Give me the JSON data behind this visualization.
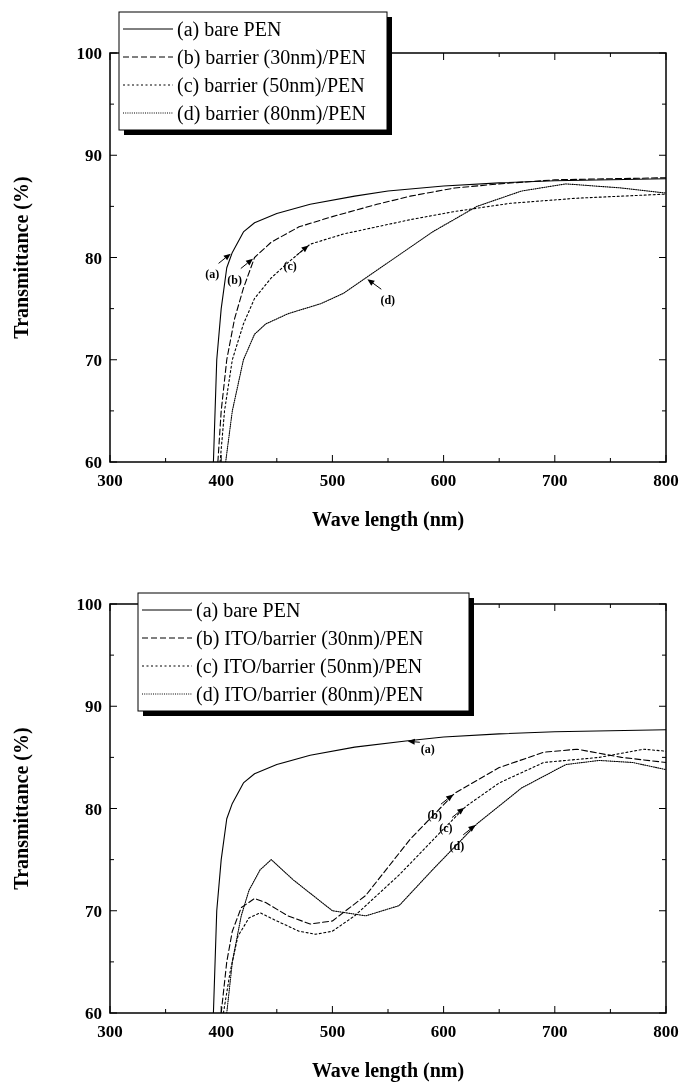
{
  "chart_data": [
    {
      "type": "line",
      "xlabel": "Wave length (nm)",
      "ylabel": "Transmittance (%)",
      "xlim": [
        300,
        800
      ],
      "xticks": [
        300,
        400,
        500,
        600,
        700,
        800
      ],
      "ylim": [
        60,
        100
      ],
      "yticks": [
        60,
        70,
        80,
        90,
        100
      ],
      "legend": "top left",
      "grid": false,
      "series": [
        {
          "name": "(a) bare PEN",
          "color": "#000000",
          "line_style": "solid",
          "x": [
            393,
            396,
            400,
            405,
            410,
            420,
            430,
            450,
            480,
            520,
            550,
            600,
            650,
            700,
            750,
            800
          ],
          "values": [
            60,
            70,
            75,
            79,
            80.5,
            82.5,
            83.4,
            84.3,
            85.2,
            86,
            86.5,
            87,
            87.3,
            87.5,
            87.6,
            87.7
          ]
        },
        {
          "name": "(b) barrier (30nm)/PEN",
          "color": "#000000",
          "line_style": "dashed",
          "x": [
            397,
            400,
            405,
            412,
            420,
            430,
            445,
            470,
            500,
            540,
            570,
            610,
            650,
            700,
            750,
            800
          ],
          "values": [
            60,
            65,
            70,
            74,
            77,
            80,
            81.5,
            83,
            84,
            85.2,
            86,
            86.8,
            87.2,
            87.6,
            87.7,
            87.8
          ]
        },
        {
          "name": "(c) barrier (50nm)/PEN",
          "color": "#000000",
          "line_style": "dotted",
          "x": [
            399,
            403,
            410,
            420,
            430,
            445,
            460,
            480,
            510,
            540,
            570,
            610,
            660,
            720,
            760,
            800
          ],
          "values": [
            60,
            65,
            70,
            73.5,
            76,
            78,
            79.5,
            81.3,
            82.3,
            83,
            83.7,
            84.5,
            85.3,
            85.8,
            86,
            86.2
          ]
        },
        {
          "name": "(d) barrier (80nm)/PEN",
          "color": "#000000",
          "line_style": "dotted",
          "x": [
            404,
            410,
            420,
            430,
            440,
            460,
            490,
            510,
            530,
            550,
            590,
            630,
            670,
            710,
            760,
            800
          ],
          "values": [
            60,
            65,
            70,
            72.5,
            73.5,
            74.5,
            75.5,
            76.5,
            78,
            79.5,
            82.5,
            85,
            86.5,
            87.2,
            86.8,
            86.3
          ]
        }
      ],
      "annotations": [
        {
          "text": "(a)",
          "x": 410,
          "y": 80.5
        },
        {
          "text": "(b)",
          "x": 430,
          "y": 80
        },
        {
          "text": "(c)",
          "x": 480,
          "y": 81.3
        },
        {
          "text": "(d)",
          "x": 530,
          "y": 78
        }
      ]
    },
    {
      "type": "line",
      "xlabel": "Wave length (nm)",
      "ylabel": "Transmittance (%)",
      "xlim": [
        300,
        800
      ],
      "xticks": [
        300,
        400,
        500,
        600,
        700,
        800
      ],
      "ylim": [
        60,
        100
      ],
      "yticks": [
        60,
        70,
        80,
        90,
        100
      ],
      "legend": "top left",
      "grid": false,
      "series": [
        {
          "name": "(a) bare PEN",
          "color": "#000000",
          "line_style": "solid",
          "x": [
            393,
            396,
            400,
            405,
            410,
            420,
            430,
            450,
            480,
            520,
            566,
            600,
            650,
            700,
            750,
            800
          ],
          "values": [
            60,
            70,
            75,
            79,
            80.5,
            82.5,
            83.4,
            84.3,
            85.2,
            86,
            86.6,
            87,
            87.3,
            87.5,
            87.6,
            87.7
          ]
        },
        {
          "name": "(b) ITO/barrier (30nm)/PEN",
          "color": "#000000",
          "line_style": "dashed",
          "x": [
            400,
            405,
            410,
            418,
            430,
            440,
            460,
            480,
            500,
            530,
            570,
            610,
            650,
            690,
            720,
            760,
            800
          ],
          "values": [
            60,
            65,
            68,
            70.3,
            71.2,
            70.8,
            69.5,
            68.7,
            69,
            71.5,
            77,
            81.5,
            84,
            85.5,
            85.8,
            85,
            84.5
          ]
        },
        {
          "name": "(c) ITO/barrier (50nm)/PEN",
          "color": "#000000",
          "line_style": "dotted",
          "x": [
            402,
            408,
            415,
            425,
            435,
            450,
            470,
            485,
            500,
            520,
            560,
            600,
            620,
            650,
            690,
            740,
            780,
            800
          ],
          "values": [
            60,
            64,
            67.5,
            69.3,
            69.8,
            69,
            68,
            67.7,
            68,
            69.5,
            73.5,
            78,
            80.2,
            82.5,
            84.5,
            85,
            85.8,
            85.6
          ]
        },
        {
          "name": "(d) ITO/barrier (80nm)/PEN",
          "color": "#000000",
          "line_style": "dotted",
          "x": [
            405,
            410,
            418,
            425,
            435,
            445,
            465,
            500,
            530,
            560,
            590,
            630,
            670,
            710,
            740,
            770,
            800
          ],
          "values": [
            60,
            65,
            69.5,
            72,
            74,
            75,
            73,
            70,
            69.5,
            70.5,
            74,
            78.5,
            82,
            84.3,
            84.7,
            84.5,
            83.8
          ]
        }
      ],
      "annotations": [
        {
          "text": "(a)",
          "x": 566,
          "y": 86.6
        },
        {
          "text": "(b)",
          "x": 610,
          "y": 81.5
        },
        {
          "text": "(c)",
          "x": 620,
          "y": 80.2
        },
        {
          "text": "(d)",
          "x": 630,
          "y": 78.5
        }
      ]
    }
  ]
}
